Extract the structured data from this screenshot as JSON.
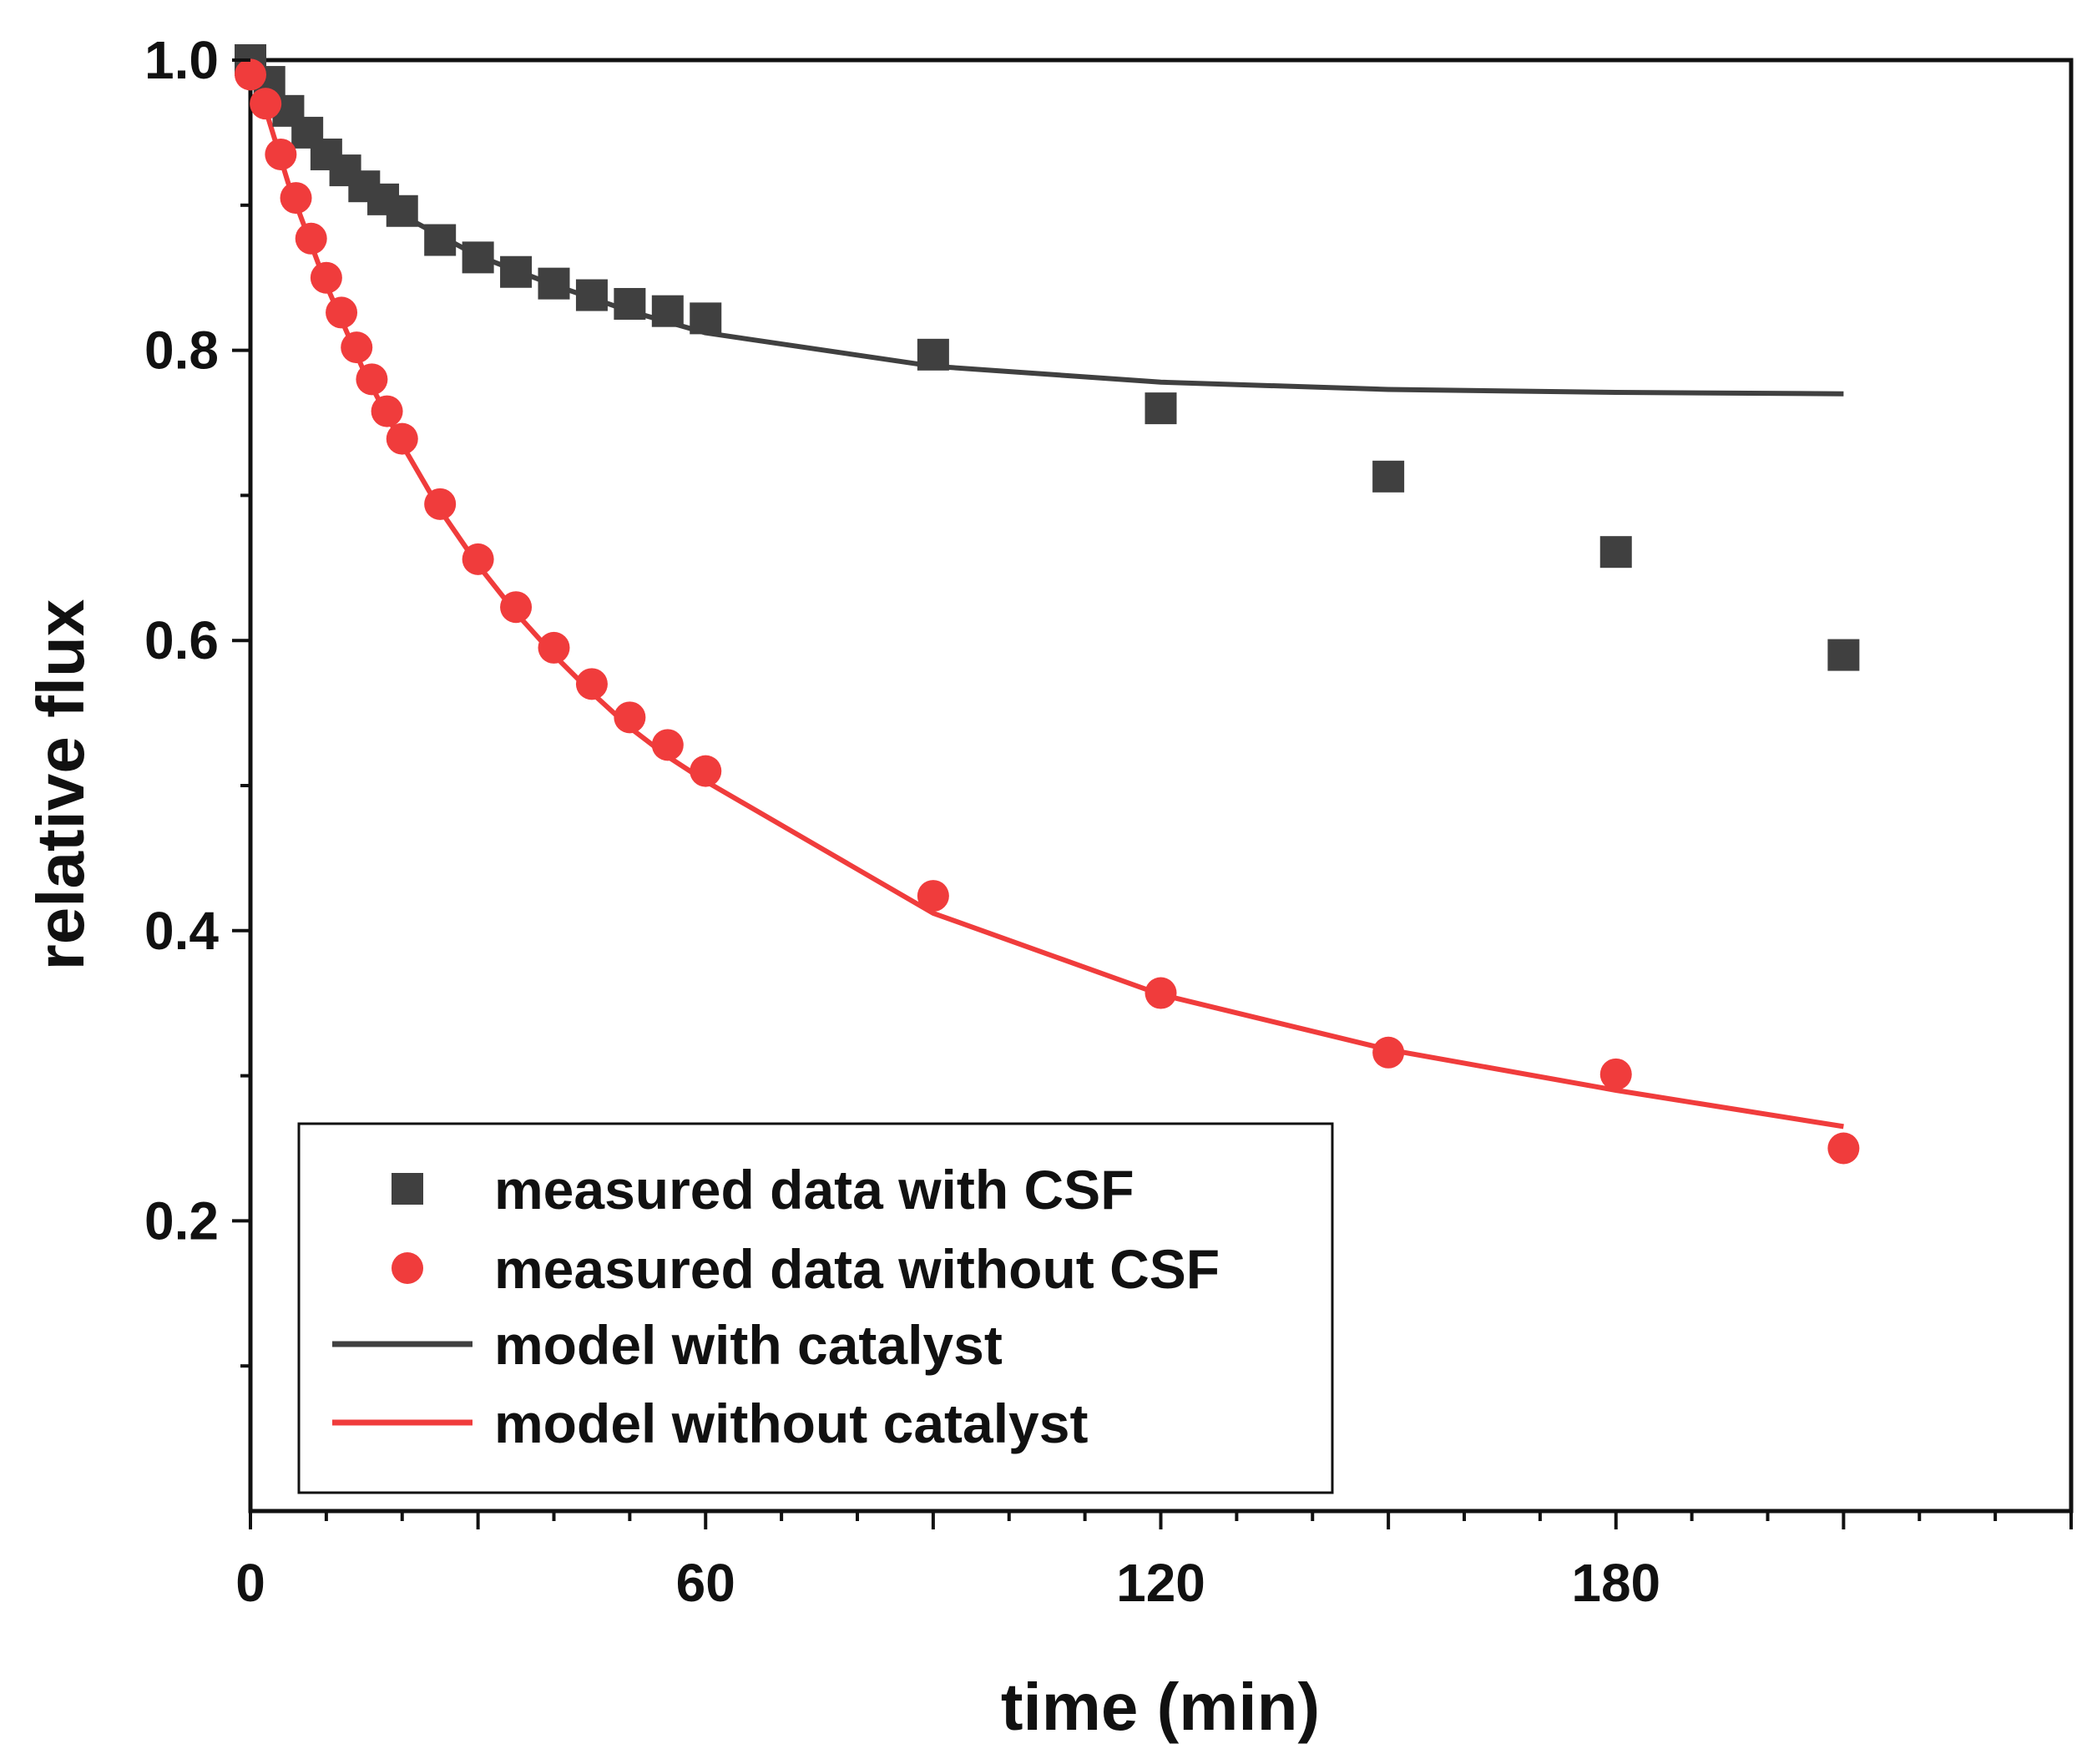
{
  "chart_data": {
    "type": "scatter",
    "xlabel": "time (min)",
    "ylabel": "relative flux",
    "xlim": [
      0,
      240
    ],
    "ylim": [
      0,
      1.0
    ],
    "xticks": [
      0,
      60,
      120,
      180
    ],
    "xtick_labels": [
      "0",
      "60",
      "120",
      "180"
    ],
    "yticks": [
      0.2,
      0.4,
      0.6,
      0.8,
      1.0
    ],
    "ytick_labels": [
      "0.2",
      "0.4",
      "0.6",
      "0.8",
      "1.0"
    ],
    "legend_position": "bottom-left",
    "series": [
      {
        "name": "measured data with CSF",
        "kind": "scatter",
        "marker": "square",
        "color": "#404040",
        "x": [
          0,
          2.5,
          5,
          7.5,
          10,
          12.5,
          15,
          17.5,
          20,
          25,
          30,
          35,
          40,
          45,
          50,
          55,
          60,
          90,
          120,
          150,
          180,
          210
        ],
        "y": [
          1.0,
          0.985,
          0.965,
          0.95,
          0.935,
          0.924,
          0.913,
          0.904,
          0.896,
          0.876,
          0.864,
          0.854,
          0.846,
          0.838,
          0.832,
          0.827,
          0.822,
          0.797,
          0.76,
          0.713,
          0.661,
          0.59
        ]
      },
      {
        "name": "measured data without CSF",
        "kind": "scatter",
        "marker": "circle",
        "color": "#f03c3c",
        "x": [
          0,
          2,
          4,
          6,
          8,
          10,
          12,
          14,
          16,
          18,
          20,
          25,
          30,
          35,
          40,
          45,
          50,
          55,
          60,
          90,
          120,
          150,
          180,
          210
        ],
        "y": [
          0.99,
          0.97,
          0.935,
          0.905,
          0.877,
          0.85,
          0.826,
          0.802,
          0.78,
          0.758,
          0.739,
          0.694,
          0.656,
          0.623,
          0.595,
          0.57,
          0.547,
          0.528,
          0.51,
          0.424,
          0.357,
          0.316,
          0.301,
          0.25
        ]
      },
      {
        "name": "model with catalyst",
        "kind": "line",
        "color": "#404040",
        "x": [
          0,
          10,
          20,
          30,
          40,
          50,
          60,
          90,
          120,
          150,
          180,
          210
        ],
        "y": [
          1.0,
          0.935,
          0.893,
          0.865,
          0.845,
          0.827,
          0.812,
          0.789,
          0.778,
          0.773,
          0.771,
          0.77
        ]
      },
      {
        "name": "model without catalyst",
        "kind": "line",
        "color": "#f03c3c",
        "x": [
          0,
          5,
          10,
          15,
          20,
          25,
          30,
          35,
          40,
          45,
          50,
          55,
          60,
          90,
          120,
          150,
          180,
          210
        ],
        "y": [
          1.0,
          0.915,
          0.845,
          0.785,
          0.735,
          0.69,
          0.652,
          0.619,
          0.59,
          0.564,
          0.54,
          0.52,
          0.503,
          0.412,
          0.356,
          0.318,
          0.29,
          0.265
        ]
      }
    ]
  }
}
